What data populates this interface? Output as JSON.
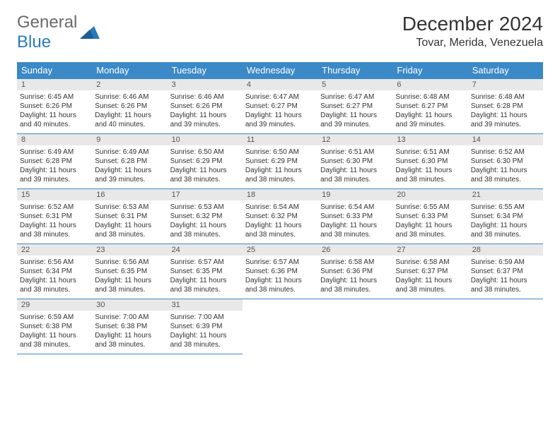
{
  "brand": {
    "part1": "General",
    "part2": "Blue"
  },
  "title": "December 2024",
  "location": "Tovar, Merida, Venezuela",
  "colors": {
    "header_bg": "#3b89c7",
    "header_text": "#ffffff",
    "daynum_bg": "#e8e8e8",
    "border": "#3b89c7",
    "logo_gray": "#6b6b6b",
    "logo_blue": "#2a7ab9"
  },
  "dayNames": [
    "Sunday",
    "Monday",
    "Tuesday",
    "Wednesday",
    "Thursday",
    "Friday",
    "Saturday"
  ],
  "weeks": [
    [
      {
        "n": "1",
        "sr": "6:45 AM",
        "ss": "6:26 PM",
        "dl": "11 hours and 40 minutes."
      },
      {
        "n": "2",
        "sr": "6:46 AM",
        "ss": "6:26 PM",
        "dl": "11 hours and 40 minutes."
      },
      {
        "n": "3",
        "sr": "6:46 AM",
        "ss": "6:26 PM",
        "dl": "11 hours and 39 minutes."
      },
      {
        "n": "4",
        "sr": "6:47 AM",
        "ss": "6:27 PM",
        "dl": "11 hours and 39 minutes."
      },
      {
        "n": "5",
        "sr": "6:47 AM",
        "ss": "6:27 PM",
        "dl": "11 hours and 39 minutes."
      },
      {
        "n": "6",
        "sr": "6:48 AM",
        "ss": "6:27 PM",
        "dl": "11 hours and 39 minutes."
      },
      {
        "n": "7",
        "sr": "6:48 AM",
        "ss": "6:28 PM",
        "dl": "11 hours and 39 minutes."
      }
    ],
    [
      {
        "n": "8",
        "sr": "6:49 AM",
        "ss": "6:28 PM",
        "dl": "11 hours and 39 minutes."
      },
      {
        "n": "9",
        "sr": "6:49 AM",
        "ss": "6:28 PM",
        "dl": "11 hours and 39 minutes."
      },
      {
        "n": "10",
        "sr": "6:50 AM",
        "ss": "6:29 PM",
        "dl": "11 hours and 38 minutes."
      },
      {
        "n": "11",
        "sr": "6:50 AM",
        "ss": "6:29 PM",
        "dl": "11 hours and 38 minutes."
      },
      {
        "n": "12",
        "sr": "6:51 AM",
        "ss": "6:30 PM",
        "dl": "11 hours and 38 minutes."
      },
      {
        "n": "13",
        "sr": "6:51 AM",
        "ss": "6:30 PM",
        "dl": "11 hours and 38 minutes."
      },
      {
        "n": "14",
        "sr": "6:52 AM",
        "ss": "6:30 PM",
        "dl": "11 hours and 38 minutes."
      }
    ],
    [
      {
        "n": "15",
        "sr": "6:52 AM",
        "ss": "6:31 PM",
        "dl": "11 hours and 38 minutes."
      },
      {
        "n": "16",
        "sr": "6:53 AM",
        "ss": "6:31 PM",
        "dl": "11 hours and 38 minutes."
      },
      {
        "n": "17",
        "sr": "6:53 AM",
        "ss": "6:32 PM",
        "dl": "11 hours and 38 minutes."
      },
      {
        "n": "18",
        "sr": "6:54 AM",
        "ss": "6:32 PM",
        "dl": "11 hours and 38 minutes."
      },
      {
        "n": "19",
        "sr": "6:54 AM",
        "ss": "6:33 PM",
        "dl": "11 hours and 38 minutes."
      },
      {
        "n": "20",
        "sr": "6:55 AM",
        "ss": "6:33 PM",
        "dl": "11 hours and 38 minutes."
      },
      {
        "n": "21",
        "sr": "6:55 AM",
        "ss": "6:34 PM",
        "dl": "11 hours and 38 minutes."
      }
    ],
    [
      {
        "n": "22",
        "sr": "6:56 AM",
        "ss": "6:34 PM",
        "dl": "11 hours and 38 minutes."
      },
      {
        "n": "23",
        "sr": "6:56 AM",
        "ss": "6:35 PM",
        "dl": "11 hours and 38 minutes."
      },
      {
        "n": "24",
        "sr": "6:57 AM",
        "ss": "6:35 PM",
        "dl": "11 hours and 38 minutes."
      },
      {
        "n": "25",
        "sr": "6:57 AM",
        "ss": "6:36 PM",
        "dl": "11 hours and 38 minutes."
      },
      {
        "n": "26",
        "sr": "6:58 AM",
        "ss": "6:36 PM",
        "dl": "11 hours and 38 minutes."
      },
      {
        "n": "27",
        "sr": "6:58 AM",
        "ss": "6:37 PM",
        "dl": "11 hours and 38 minutes."
      },
      {
        "n": "28",
        "sr": "6:59 AM",
        "ss": "6:37 PM",
        "dl": "11 hours and 38 minutes."
      }
    ],
    [
      {
        "n": "29",
        "sr": "6:59 AM",
        "ss": "6:38 PM",
        "dl": "11 hours and 38 minutes."
      },
      {
        "n": "30",
        "sr": "7:00 AM",
        "ss": "6:38 PM",
        "dl": "11 hours and 38 minutes."
      },
      {
        "n": "31",
        "sr": "7:00 AM",
        "ss": "6:39 PM",
        "dl": "11 hours and 38 minutes."
      },
      null,
      null,
      null,
      null
    ]
  ],
  "labels": {
    "sunrise": "Sunrise: ",
    "sunset": "Sunset: ",
    "daylight": "Daylight: "
  }
}
